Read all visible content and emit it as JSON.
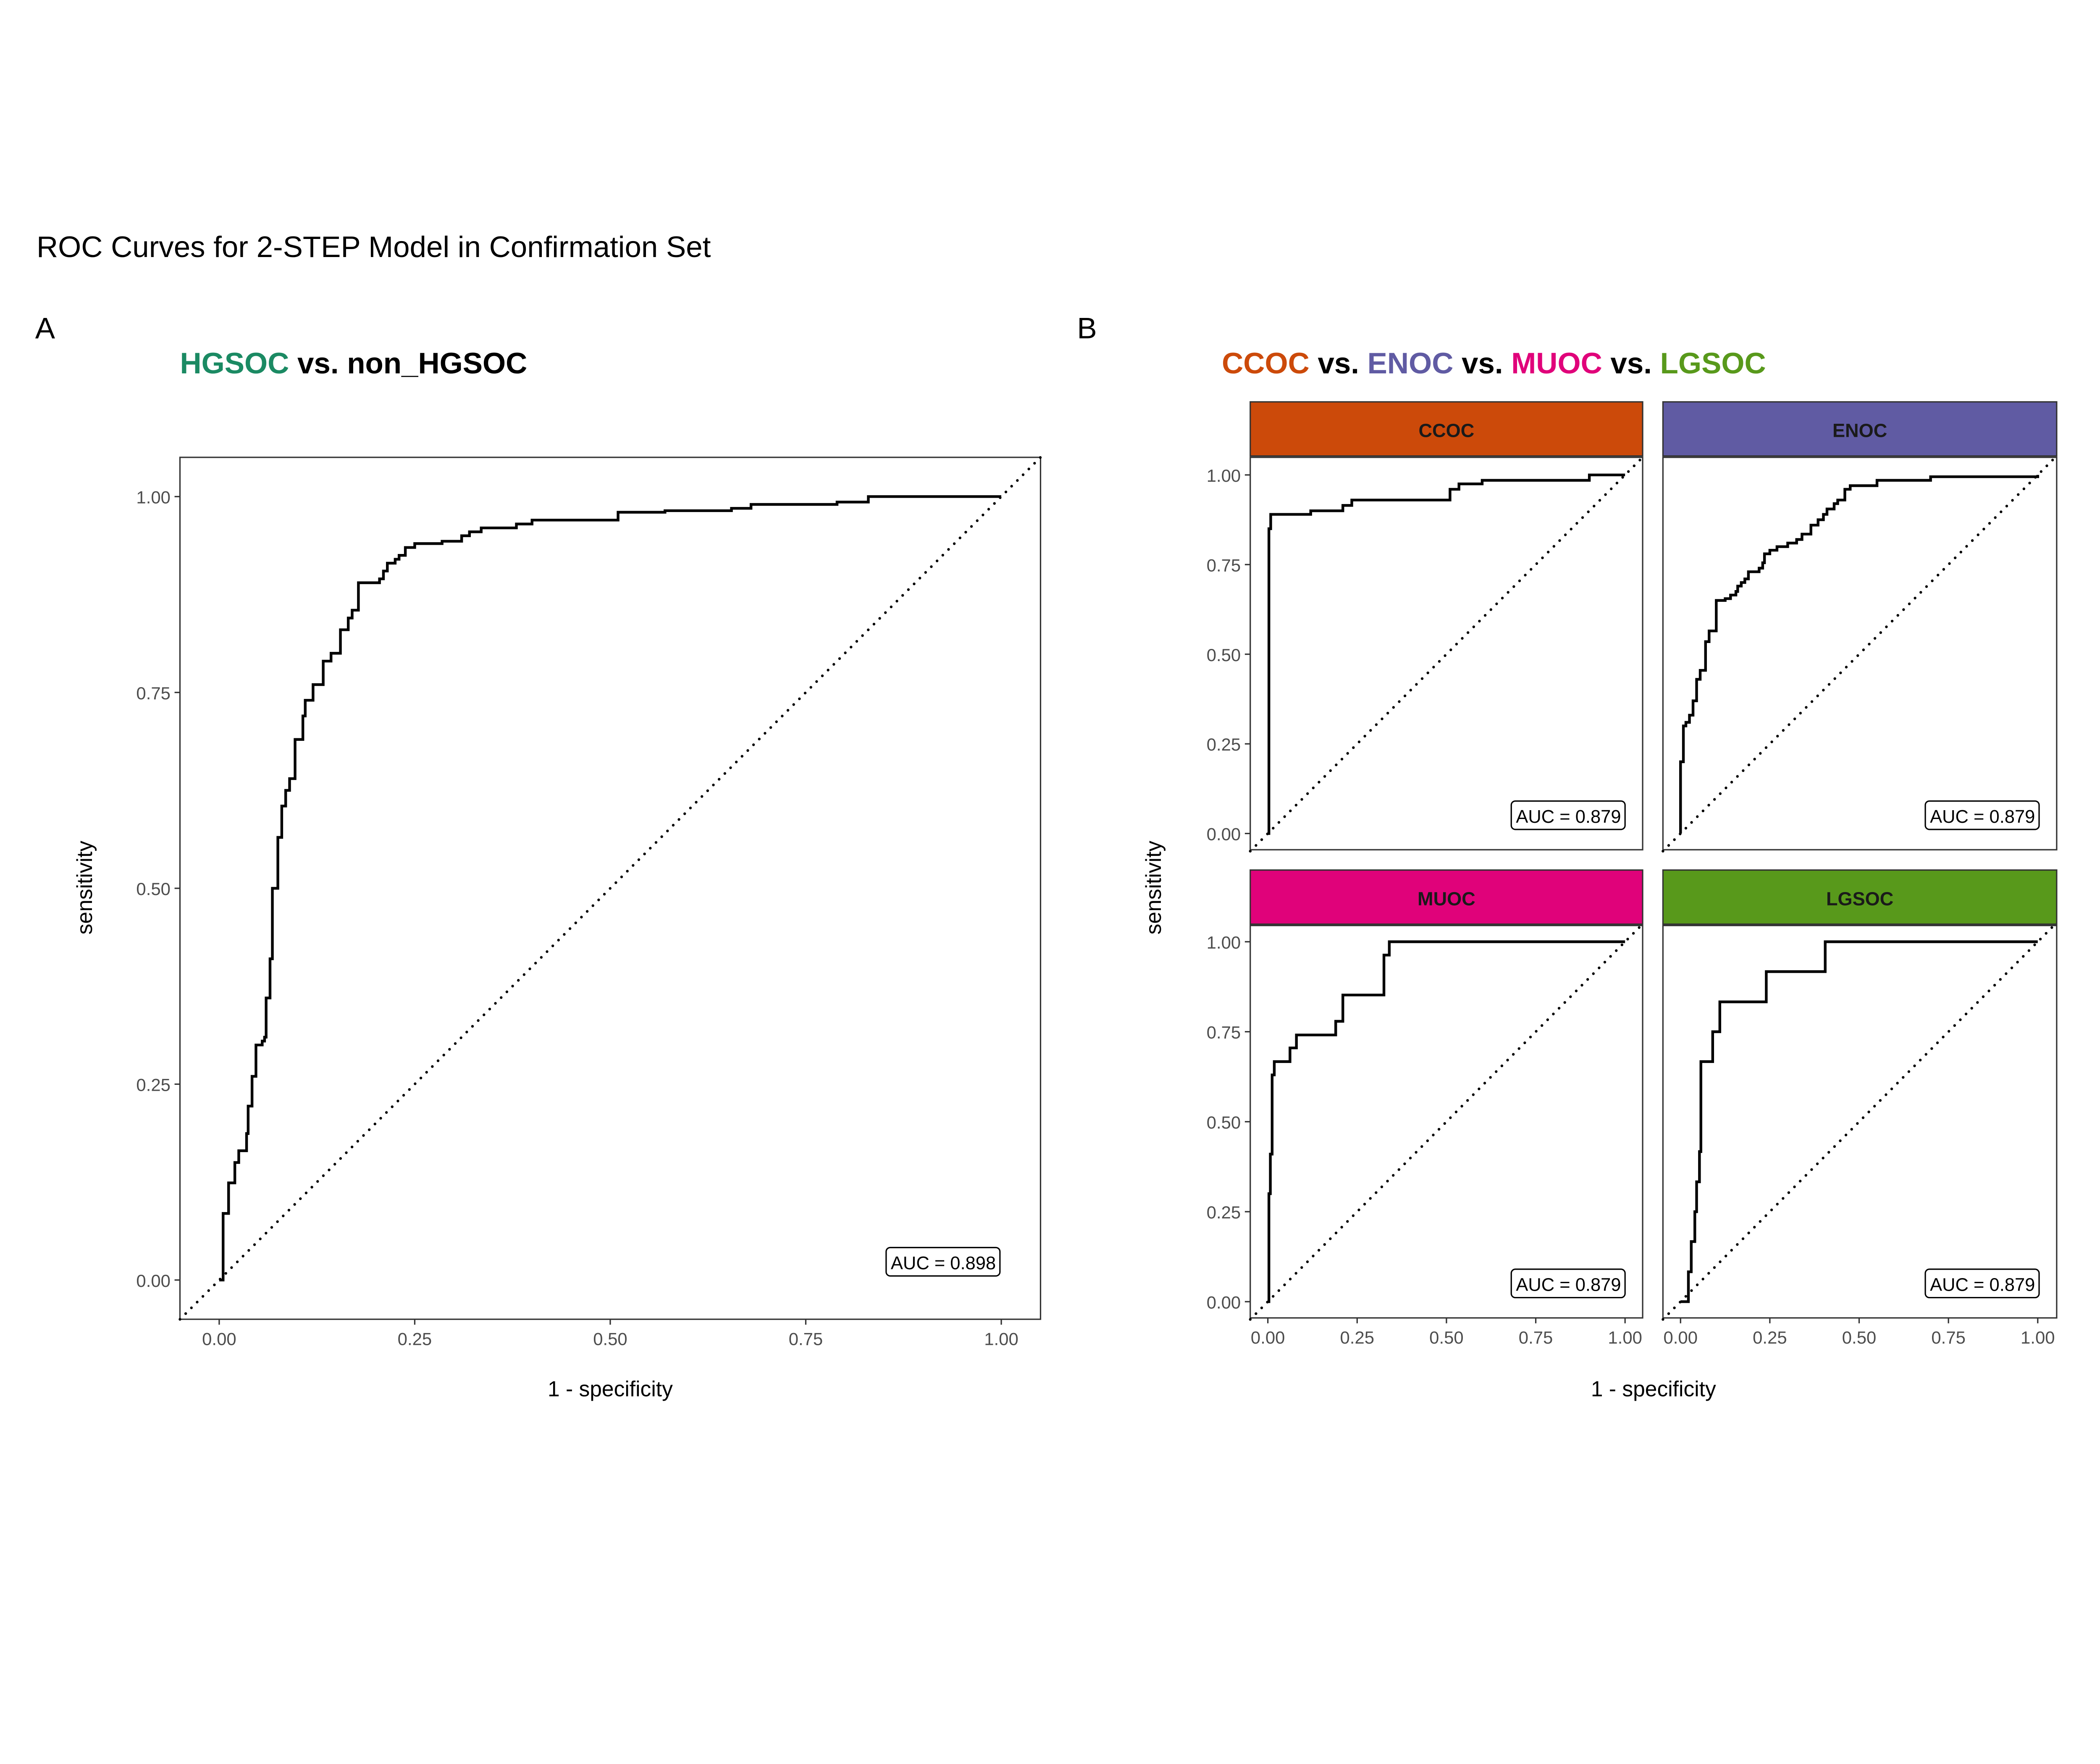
{
  "figure_title": "ROC Curves for 2-STEP Model in Confirmation Set",
  "panel_labels": {
    "a": "A",
    "b": "B"
  },
  "chart_data": [
    {
      "type": "line",
      "panel": "A",
      "title_segments": [
        {
          "text": "HGSOC",
          "color": "#1b8a63"
        },
        {
          "text": " vs. non_HGSOC",
          "color": "#000000"
        }
      ],
      "xlabel": "1 - specificity",
      "ylabel": "sensitivity",
      "xlim": [
        0,
        1
      ],
      "ylim": [
        0,
        1
      ],
      "xticks": [
        "0.00",
        "0.25",
        "0.50",
        "0.75",
        "1.00"
      ],
      "yticks": [
        "0.00",
        "0.25",
        "0.50",
        "0.75",
        "1.00"
      ],
      "reference_line": "diagonal dotted",
      "annotation": "AUC = 0.898",
      "steps": [
        [
          0.005,
          0.085
        ],
        [
          0.012,
          0.124
        ],
        [
          0.02,
          0.15
        ],
        [
          0.025,
          0.165
        ],
        [
          0.035,
          0.187
        ],
        [
          0.037,
          0.222
        ],
        [
          0.042,
          0.26
        ],
        [
          0.047,
          0.3
        ],
        [
          0.055,
          0.305
        ],
        [
          0.058,
          0.31
        ],
        [
          0.06,
          0.36
        ],
        [
          0.065,
          0.41
        ],
        [
          0.068,
          0.5
        ],
        [
          0.075,
          0.565
        ],
        [
          0.08,
          0.605
        ],
        [
          0.085,
          0.625
        ],
        [
          0.09,
          0.64
        ],
        [
          0.097,
          0.69
        ],
        [
          0.107,
          0.72
        ],
        [
          0.11,
          0.74
        ],
        [
          0.12,
          0.76
        ],
        [
          0.133,
          0.79
        ],
        [
          0.143,
          0.8
        ],
        [
          0.155,
          0.83
        ],
        [
          0.165,
          0.845
        ],
        [
          0.17,
          0.855
        ],
        [
          0.178,
          0.89
        ],
        [
          0.205,
          0.895
        ],
        [
          0.21,
          0.905
        ],
        [
          0.215,
          0.915
        ],
        [
          0.225,
          0.92
        ],
        [
          0.23,
          0.925
        ],
        [
          0.238,
          0.935
        ],
        [
          0.25,
          0.94
        ],
        [
          0.285,
          0.943
        ],
        [
          0.31,
          0.95
        ],
        [
          0.32,
          0.955
        ],
        [
          0.335,
          0.96
        ],
        [
          0.38,
          0.965
        ],
        [
          0.4,
          0.97
        ],
        [
          0.51,
          0.98
        ],
        [
          0.57,
          0.982
        ],
        [
          0.655,
          0.985
        ],
        [
          0.68,
          0.99
        ],
        [
          0.79,
          0.993
        ],
        [
          0.83,
          1.0
        ],
        [
          1.0,
          1.0
        ]
      ]
    },
    {
      "type": "line",
      "panel": "B",
      "title_segments": [
        {
          "text": "CCOC",
          "color": "#cc4a0a"
        },
        {
          "text": " vs. ",
          "color": "#000000"
        },
        {
          "text": "ENOC",
          "color": "#605ba3"
        },
        {
          "text": " vs. ",
          "color": "#000000"
        },
        {
          "text": "MUOC",
          "color": "#e0027a"
        },
        {
          "text": " vs. ",
          "color": "#000000"
        },
        {
          "text": "LGSOC",
          "color": "#58991b"
        }
      ],
      "xlabel": "1 - specificity",
      "ylabel": "sensitivity",
      "xlim": [
        0,
        1
      ],
      "ylim": [
        0,
        1
      ],
      "xticks": [
        "0.00",
        "0.25",
        "0.50",
        "0.75",
        "1.00"
      ],
      "yticks": [
        "0.00",
        "0.25",
        "0.50",
        "0.75",
        "1.00"
      ],
      "reference_line": "diagonal dotted",
      "facets": [
        {
          "name": "CCOC",
          "strip_color": "#cc4a0a",
          "annotation": "AUC = 0.879",
          "steps": [
            [
              0.003,
              0.85
            ],
            [
              0.008,
              0.89
            ],
            [
              0.12,
              0.9
            ],
            [
              0.21,
              0.915
            ],
            [
              0.235,
              0.93
            ],
            [
              0.51,
              0.96
            ],
            [
              0.535,
              0.975
            ],
            [
              0.6,
              0.985
            ],
            [
              0.9,
              1.0
            ],
            [
              1.0,
              1.0
            ]
          ]
        },
        {
          "name": "ENOC",
          "strip_color": "#605ba3",
          "annotation": "AUC = 0.879",
          "steps": [
            [
              0.0,
              0.2
            ],
            [
              0.008,
              0.3
            ],
            [
              0.015,
              0.31
            ],
            [
              0.025,
              0.33
            ],
            [
              0.035,
              0.37
            ],
            [
              0.045,
              0.43
            ],
            [
              0.055,
              0.455
            ],
            [
              0.07,
              0.535
            ],
            [
              0.08,
              0.565
            ],
            [
              0.1,
              0.65
            ],
            [
              0.125,
              0.655
            ],
            [
              0.14,
              0.665
            ],
            [
              0.155,
              0.675
            ],
            [
              0.16,
              0.69
            ],
            [
              0.17,
              0.7
            ],
            [
              0.18,
              0.71
            ],
            [
              0.19,
              0.73
            ],
            [
              0.22,
              0.74
            ],
            [
              0.23,
              0.755
            ],
            [
              0.235,
              0.78
            ],
            [
              0.25,
              0.79
            ],
            [
              0.27,
              0.8
            ],
            [
              0.3,
              0.81
            ],
            [
              0.325,
              0.82
            ],
            [
              0.34,
              0.835
            ],
            [
              0.365,
              0.86
            ],
            [
              0.385,
              0.875
            ],
            [
              0.4,
              0.89
            ],
            [
              0.41,
              0.905
            ],
            [
              0.43,
              0.92
            ],
            [
              0.44,
              0.93
            ],
            [
              0.46,
              0.96
            ],
            [
              0.475,
              0.97
            ],
            [
              0.55,
              0.985
            ],
            [
              0.7,
              0.995
            ],
            [
              1.0,
              1.0
            ]
          ]
        },
        {
          "name": "MUOC",
          "strip_color": "#e0027a",
          "annotation": "AUC = 0.879",
          "steps": [
            [
              0.003,
              0.3
            ],
            [
              0.007,
              0.41
            ],
            [
              0.012,
              0.63
            ],
            [
              0.018,
              0.667
            ],
            [
              0.062,
              0.705
            ],
            [
              0.08,
              0.741
            ],
            [
              0.19,
              0.779
            ],
            [
              0.21,
              0.852
            ],
            [
              0.325,
              0.963
            ],
            [
              0.34,
              1.0
            ],
            [
              1.0,
              1.0
            ]
          ]
        },
        {
          "name": "LGSOC",
          "strip_color": "#58991b",
          "annotation": "AUC = 0.879",
          "steps": [
            [
              0.022,
              0.0
            ],
            [
              0.022,
              0.083
            ],
            [
              0.03,
              0.167
            ],
            [
              0.04,
              0.25
            ],
            [
              0.045,
              0.333
            ],
            [
              0.053,
              0.417
            ],
            [
              0.057,
              0.667
            ],
            [
              0.09,
              0.75
            ],
            [
              0.11,
              0.833
            ],
            [
              0.24,
              0.917
            ],
            [
              0.405,
              1.0
            ],
            [
              1.0,
              1.0
            ]
          ]
        }
      ]
    }
  ]
}
